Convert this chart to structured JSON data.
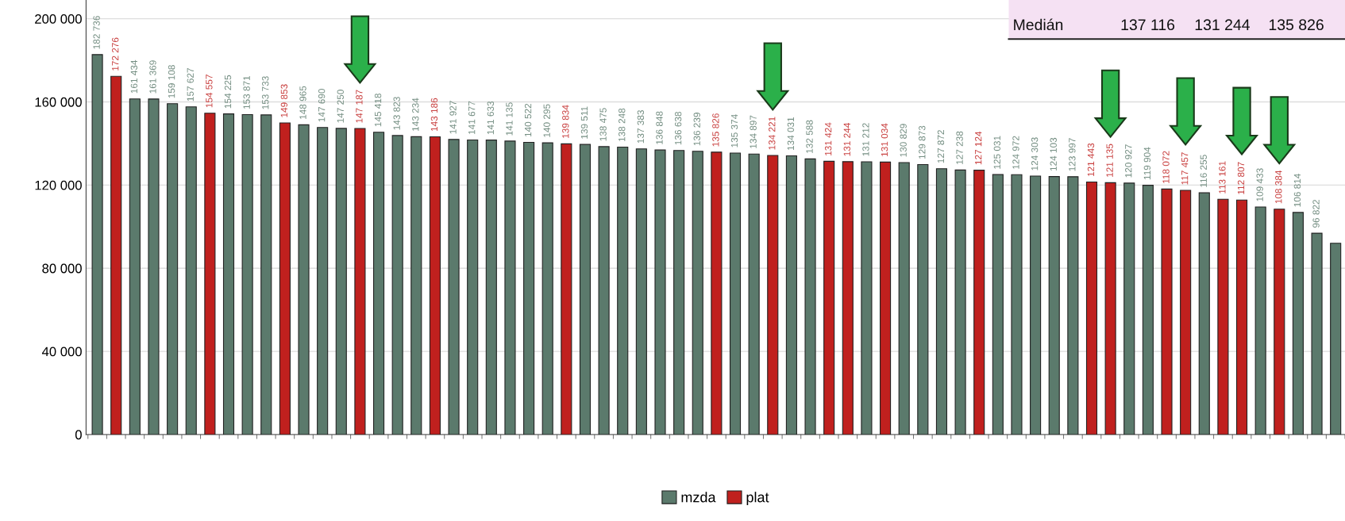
{
  "chart_data": {
    "type": "bar",
    "categories": [
      null,
      null,
      null,
      null,
      null,
      null,
      null,
      null,
      null,
      null,
      null,
      null,
      null,
      null,
      null,
      null,
      null,
      null,
      null,
      null,
      null,
      null,
      null,
      null,
      null,
      null,
      null,
      null,
      null,
      null,
      null,
      null,
      null,
      null,
      null,
      null,
      null,
      null,
      null,
      null,
      null,
      null,
      null,
      null,
      null,
      null,
      null,
      null,
      null,
      null,
      null,
      null,
      null,
      null,
      null,
      null,
      null,
      null,
      null,
      null,
      null,
      null,
      null,
      null,
      null,
      null,
      null
    ],
    "series": [
      {
        "name": "mzda",
        "color": "#5b7a6c",
        "values": [
          182736,
          null,
          161434,
          161369,
          159108,
          157627,
          null,
          154225,
          153871,
          153733,
          null,
          148965,
          147690,
          147250,
          null,
          145418,
          143823,
          143234,
          null,
          141927,
          141677,
          141633,
          141135,
          140522,
          140295,
          null,
          139511,
          138475,
          138248,
          137383,
          136848,
          136638,
          136239,
          null,
          135374,
          134897,
          null,
          134031,
          132588,
          null,
          null,
          131212,
          null,
          130829,
          129873,
          127872,
          127238,
          null,
          125031,
          124972,
          124303,
          124103,
          123997,
          null,
          null,
          120927,
          119904,
          null,
          null,
          116255,
          null,
          null,
          109433,
          null,
          106814,
          96822,
          92000
        ],
        "value_labels": [
          "182 736",
          null,
          "161 434",
          "161 369",
          "159 108",
          "157 627",
          null,
          "154 225",
          "153 871",
          "153 733",
          null,
          "148 965",
          "147 690",
          "147 250",
          null,
          "145 418",
          "143 823",
          "143 234",
          null,
          "141 927",
          "141 677",
          "141 633",
          "141 135",
          "140 522",
          "140 295",
          null,
          "139 511",
          "138 475",
          "138 248",
          "137 383",
          "136 848",
          "136 638",
          "136 239",
          null,
          "135 374",
          "134 897",
          null,
          "134 031",
          "132 588",
          null,
          null,
          "131 212",
          null,
          "130 829",
          "129 873",
          "127 872",
          "127 238",
          null,
          "125 031",
          "124 972",
          "124 303",
          "124 103",
          "123 997",
          null,
          null,
          "120 927",
          "119 904",
          null,
          null,
          "116 255",
          null,
          null,
          "109 433",
          null,
          "106 814",
          "96 822",
          null
        ]
      },
      {
        "name": "plat",
        "color": "#c0201e",
        "values": [
          null,
          172276,
          null,
          null,
          null,
          null,
          154557,
          null,
          null,
          null,
          149853,
          null,
          null,
          null,
          147187,
          null,
          null,
          null,
          143186,
          null,
          null,
          null,
          null,
          null,
          null,
          139834,
          null,
          null,
          null,
          null,
          null,
          null,
          null,
          135826,
          null,
          null,
          134221,
          null,
          null,
          131424,
          131244,
          null,
          131034,
          null,
          null,
          null,
          null,
          127124,
          null,
          null,
          null,
          null,
          null,
          121443,
          121135,
          null,
          null,
          118072,
          117457,
          null,
          113161,
          112807,
          null,
          108384,
          null,
          null,
          null
        ],
        "value_labels": [
          null,
          "172 276",
          null,
          null,
          null,
          null,
          "154 557",
          null,
          null,
          null,
          "149 853",
          null,
          null,
          null,
          "147 187",
          null,
          null,
          null,
          "143 186",
          null,
          null,
          null,
          null,
          null,
          null,
          "139 834",
          null,
          null,
          null,
          null,
          null,
          null,
          null,
          "135 826",
          null,
          null,
          "134 221",
          null,
          null,
          "131 424",
          "131 244",
          null,
          "131 034",
          null,
          null,
          null,
          null,
          "127 124",
          null,
          null,
          null,
          null,
          null,
          "121 443",
          "121 135",
          null,
          null,
          "118 072",
          "117 457",
          null,
          "113 161",
          "112 807",
          null,
          "108 384",
          null,
          null,
          null
        ]
      }
    ],
    "ylim": [
      0,
      209000
    ],
    "yticks": [
      {
        "value": 0,
        "label": "0"
      },
      {
        "value": 40000,
        "label": "40 000"
      },
      {
        "value": 80000,
        "label": "80 000"
      },
      {
        "value": 120000,
        "label": "120 000"
      },
      {
        "value": 160000,
        "label": "160 000"
      },
      {
        "value": 200000,
        "label": "200 000"
      }
    ],
    "grid": "y",
    "legend": "bottom",
    "annotations": [
      "Medián",
      "137 116",
      "131 244",
      "135 826"
    ]
  }
}
